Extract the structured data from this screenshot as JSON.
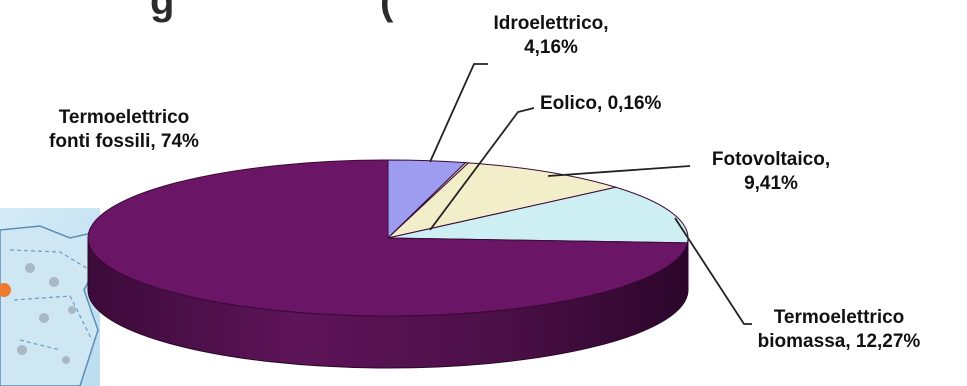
{
  "chart_data": {
    "type": "pie",
    "title": "",
    "slices": [
      {
        "label": "Termoelettrico fonti fossili",
        "value": 74,
        "display_value": "74%",
        "color": "#6b1566"
      },
      {
        "label": "Idroelettrico",
        "value": 4.16,
        "display_value": "4,16%",
        "color": "#9d9cf0"
      },
      {
        "label": "Eolico",
        "value": 0.16,
        "display_value": "0,16%",
        "color": "#f1e9c7"
      },
      {
        "label": "Fotovoltaico",
        "value": 9.41,
        "display_value": "9,41%",
        "color": "#f2eec9"
      },
      {
        "label": "Termoelettrico biomassa",
        "value": 12.27,
        "display_value": "12,27%",
        "color": "#cdeef2"
      }
    ],
    "labels": {
      "idro_line1": "Idroelettrico,",
      "idro_line2": "4,16%",
      "eolico": "Eolico, 0,16%",
      "foto_line1": "Fotovoltaico,",
      "foto_line2": "9,41%",
      "bio_line1": "Termoelettrico",
      "bio_line2": "biomassa, 12,27%",
      "fossili_line1": "Termoelettrico",
      "fossili_line2": "fonti fossili, 74%"
    }
  }
}
